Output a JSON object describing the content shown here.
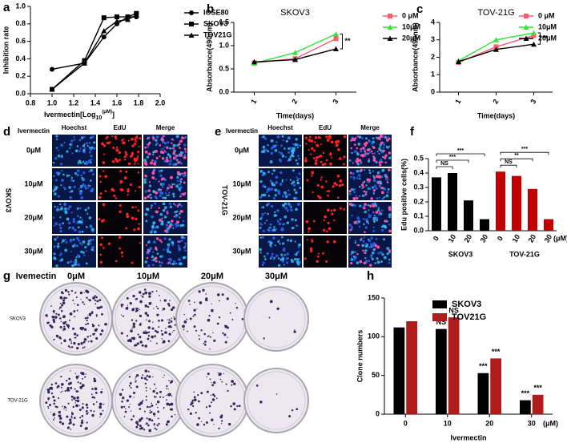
{
  "chart_data": [
    {
      "type": "line",
      "panel_label": "a",
      "ylabel": "Inhibition rate",
      "xlabel": "Ivermectin[Log",
      "xlabel_sub": "10",
      "xlabel_sup": "(μM)",
      "xlabel_end": "]",
      "x": [
        1.0,
        1.3,
        1.48,
        1.6,
        1.7,
        1.78
      ],
      "xlim": [
        0.8,
        2.0
      ],
      "xticks": [
        0.8,
        {
          "value": 1,
          "label": "1.0"
        },
        1.2,
        1.4,
        1.6,
        1.8,
        {
          "value": 2,
          "label": "2.0"
        }
      ],
      "ylim": [
        0,
        1
      ],
      "yticks": [
        {
          "value": 0,
          "label": "0.0"
        },
        0.2,
        0.4,
        0.6,
        0.8,
        {
          "value": 1,
          "label": "1.0"
        }
      ],
      "series": [
        {
          "name": "IOSE80",
          "color": "#000000",
          "marker": "circle",
          "values": [
            0.28,
            0.35,
            0.65,
            0.8,
            0.88,
            0.88
          ]
        },
        {
          "name": "SKOV3",
          "color": "#000000",
          "marker": "square",
          "values": [
            0.05,
            0.38,
            0.87,
            0.88,
            0.88,
            0.92
          ]
        },
        {
          "name": "TOV21G",
          "color": "#000000",
          "marker": "triangle",
          "values": [
            0.05,
            0.35,
            0.72,
            0.83,
            0.85,
            0.9
          ]
        }
      ]
    },
    {
      "type": "line",
      "panel_label": "b",
      "title": "SKOV3",
      "categories": [
        "1",
        "2",
        "3"
      ],
      "xlabel": "Time(days)",
      "ylabel": "Absorbance(490nm)",
      "ylim": [
        0,
        1.5
      ],
      "yticks": [
        {
          "value": 0,
          "label": "0.0"
        },
        0.5,
        {
          "value": 1,
          "label": "1.0"
        },
        1.5
      ],
      "annotation": "**",
      "series": [
        {
          "name": "0 μM",
          "color": "#ff5a6e",
          "marker": "square",
          "values": [
            0.63,
            0.72,
            1.15
          ]
        },
        {
          "name": "10μM",
          "color": "#33e633",
          "marker": "triangle",
          "values": [
            0.62,
            0.85,
            1.25
          ]
        },
        {
          "name": "20μM",
          "color": "#000000",
          "marker": "triangle",
          "values": [
            0.65,
            0.7,
            0.93
          ]
        }
      ]
    },
    {
      "type": "line",
      "panel_label": "c",
      "title": "TOV-21G",
      "categories": [
        "1",
        "2",
        "3"
      ],
      "xlabel": "Time(days)",
      "ylabel": "Absorbance(490nm)",
      "ylim": [
        0,
        4
      ],
      "yticks": [
        0,
        1,
        2,
        3,
        4
      ],
      "annotation": "**",
      "series": [
        {
          "name": "0 μM",
          "color": "#ff5a6e",
          "marker": "square",
          "values": [
            1.7,
            2.6,
            3.25
          ]
        },
        {
          "name": "10μM",
          "color": "#33e633",
          "marker": "triangle",
          "values": [
            1.8,
            3.0,
            3.4
          ]
        },
        {
          "name": "20μM",
          "color": "#000000",
          "marker": "triangle",
          "values": [
            1.75,
            2.45,
            2.75
          ]
        }
      ]
    },
    {
      "type": "bar",
      "panel_label": "f",
      "group_by": "series",
      "ylabel": "Edu positive cells(%)",
      "categories": [
        "0",
        "10",
        "20",
        "30"
      ],
      "unit_label": "(μM)",
      "ylim": [
        0,
        0.5
      ],
      "yticks": [
        {
          "value": 0,
          "label": "0.0"
        },
        0.1,
        0.2,
        0.3,
        0.4,
        0.5
      ],
      "series": [
        {
          "name": "SKOV3",
          "color": "#000000",
          "values": [
            0.37,
            0.4,
            0.21,
            0.08
          ],
          "comparisons": [
            "NS",
            "***",
            "***"
          ]
        },
        {
          "name": "TOV-21G",
          "color": "#c00000",
          "values": [
            0.41,
            0.38,
            0.29,
            0.08
          ],
          "comparisons": [
            "NS",
            "**",
            "***"
          ]
        }
      ]
    },
    {
      "type": "bar",
      "panel_label": "h",
      "group_by": "category",
      "ylabel": "Clone numbers",
      "xlabel": "Ivermectin",
      "categories": [
        "0",
        "10",
        "20",
        "30"
      ],
      "unit_label": "(μM)",
      "ylim": [
        0,
        150
      ],
      "yticks": [
        0,
        50,
        100,
        150
      ],
      "series": [
        {
          "name": "SKOV3",
          "color": "#000000",
          "values": [
            112,
            110,
            53,
            18
          ],
          "significance": [
            null,
            "NS",
            "***",
            "***"
          ]
        },
        {
          "name": "TOV21G",
          "color": "#b01c1c",
          "values": [
            120,
            125,
            72,
            25
          ],
          "significance": [
            null,
            "NS",
            "***",
            "***"
          ]
        }
      ]
    }
  ],
  "image_panels": {
    "d": {
      "label": "d",
      "row_title": "Ivermectin",
      "columns": [
        "Hoechst",
        "EdU",
        "Merge"
      ],
      "rows": [
        "0μM",
        "10μM",
        "20μM",
        "30μM"
      ],
      "cell_line": "SKOV3"
    },
    "e": {
      "label": "e",
      "row_title": "Ivermectin",
      "columns": [
        "Hoechst",
        "EdU",
        "Merge"
      ],
      "rows": [
        "0μM",
        "10μM",
        "20μM",
        "30μM"
      ],
      "cell_line": "TOV-21G"
    },
    "g": {
      "label": "g",
      "row_title": "Ivemectin",
      "columns": [
        "0μM",
        "10μM",
        "20μM",
        "30μM"
      ],
      "rows": [
        "SKOV3",
        "TOV-21G"
      ]
    }
  }
}
